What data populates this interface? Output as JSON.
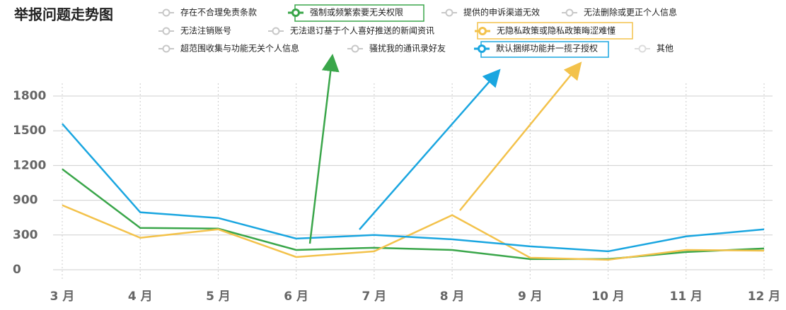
{
  "chart_data": {
    "type": "line",
    "title": "举报问题走势图",
    "categories": [
      "3 月",
      "4 月",
      "5 月",
      "6 月",
      "7 月",
      "8 月",
      "9 月",
      "10 月",
      "11 月",
      "12 月"
    ],
    "ylim": [
      0,
      1800
    ],
    "yticks": [
      0,
      300,
      900,
      1200,
      1500,
      1800
    ],
    "grid": true,
    "series": [
      {
        "name": "存在不合理免责条款",
        "color": "#c8c8c8",
        "visible": false,
        "values": null
      },
      {
        "name": "强制或频繁索要无关权限",
        "color": "#3aa64a",
        "visible": true,
        "values": [
          1169,
          422,
          410,
          171,
          190,
          171,
          92,
          92,
          153,
          184
        ]
      },
      {
        "name": "提供的申诉渠道无效",
        "color": "#c8c8c8",
        "visible": false,
        "values": null
      },
      {
        "name": "无法删除或更正个人信息",
        "color": "#c8c8c8",
        "visible": false,
        "values": null
      },
      {
        "name": "无法注销账号",
        "color": "#c8c8c8",
        "visible": false,
        "values": null
      },
      {
        "name": "无法退订基于个人喜好推送的新闻资讯",
        "color": "#c8c8c8",
        "visible": false,
        "values": null
      },
      {
        "name": "无隐私政策或隐私政策晦涩难懂",
        "color": "#f3c24b",
        "visible": true,
        "values": [
          814,
          276,
          398,
          110,
          159,
          643,
          104,
          86,
          171,
          165
        ]
      },
      {
        "name": "超范围收集与功能无关个人信息",
        "color": "#c8c8c8",
        "visible": false,
        "values": null
      },
      {
        "name": "骚扰我的通讯录好友",
        "color": "#c8c8c8",
        "visible": false,
        "values": null
      },
      {
        "name": "默认捆绑功能并一揽子授权",
        "color": "#1aa6e0",
        "visible": true,
        "values": [
          1560,
          692,
          594,
          269,
          300,
          263,
          202,
          159,
          288,
          398
        ]
      },
      {
        "name": "其他",
        "color": "#dcdcdc",
        "visible": false,
        "values": null
      }
    ]
  }
}
